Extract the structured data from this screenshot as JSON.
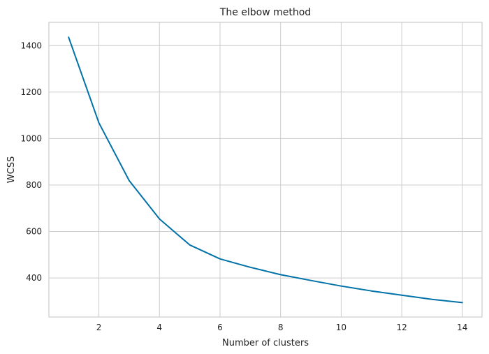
{
  "chart_data": {
    "type": "line",
    "title": "The elbow method",
    "xlabel": "Number of clusters",
    "ylabel": "WCSS",
    "xlim": [
      0.35,
      14.65
    ],
    "ylim": [
      232,
      1500
    ],
    "x_ticks": [
      2,
      4,
      6,
      8,
      10,
      12,
      14
    ],
    "y_ticks": [
      400,
      600,
      800,
      1000,
      1200,
      1400
    ],
    "grid": true,
    "series": [
      {
        "name": "WCSS",
        "color": "#0072a8",
        "x": [
          1,
          2,
          3,
          4,
          5,
          6,
          7,
          8,
          9,
          10,
          11,
          12,
          13,
          14
        ],
        "values": [
          1436,
          1068,
          819,
          654,
          542,
          482,
          446,
          414,
          389,
          365,
          344,
          326,
          308,
          294
        ]
      }
    ]
  }
}
